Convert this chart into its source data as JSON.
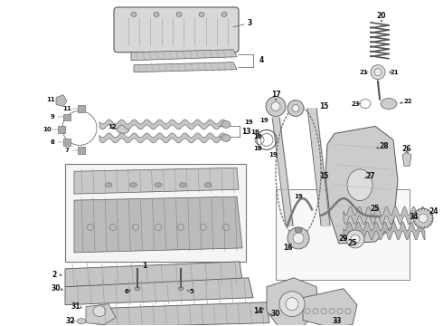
{
  "bg_color": "#ffffff",
  "line_color": "#555555",
  "label_color": "#111111",
  "fig_w": 4.9,
  "fig_h": 3.6,
  "dpi": 100
}
